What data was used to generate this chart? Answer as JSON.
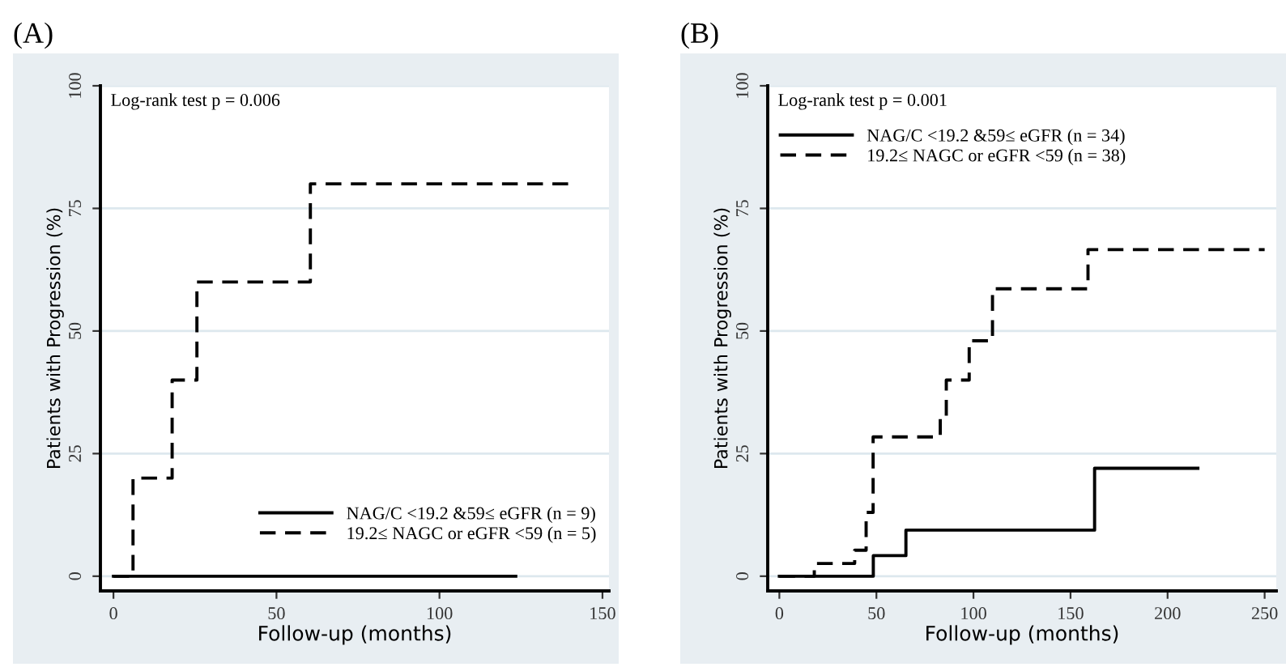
{
  "chart_data": [
    {
      "type": "step",
      "title": "(A)",
      "xlabel": "Follow-up (months)",
      "ylabel": "Patients with Progression (%)",
      "xlim": [
        -4,
        152
      ],
      "ylim": [
        -3,
        100
      ],
      "xticks": [
        0,
        50,
        100,
        150
      ],
      "yticks": [
        0,
        25,
        50,
        75,
        100
      ],
      "grid": "y",
      "legend": "bottom right",
      "annotations": [
        "Log-rank test p = 0.006"
      ],
      "series": [
        {
          "name": "NAG/C <19.2 &59≤ eGFR (n = 9)",
          "color": "#000000",
          "line_style": "solid",
          "x": [
            0,
            123.4
          ],
          "values": [
            0,
            0
          ]
        },
        {
          "name": "19.2≤ NAGC or eGFR <59 (n = 5)",
          "color": "#000000",
          "line_style": "dashed",
          "x": [
            0,
            6,
            18,
            25.6,
            60.4,
            140.4
          ],
          "values": [
            0,
            20,
            40,
            60,
            80,
            80
          ]
        }
      ]
    },
    {
      "type": "step",
      "title": "(B)",
      "xlabel": "Follow-up (months)",
      "ylabel": "Patients with Progression (%)",
      "xlim": [
        -6,
        256
      ],
      "ylim": [
        -3,
        100
      ],
      "xticks": [
        0,
        50,
        100,
        150,
        200,
        250
      ],
      "yticks": [
        0,
        25,
        50,
        75,
        100
      ],
      "grid": "y",
      "legend": "top left",
      "annotations": [
        "Log-rank test p = 0.001"
      ],
      "series": [
        {
          "name": "NAG/C <19.2 &59≤ eGFR (n = 34)",
          "color": "#000000",
          "line_style": "solid",
          "x": [
            0,
            48.4,
            65.2,
            162.4,
            215.6
          ],
          "values": [
            0,
            4.2,
            9.4,
            22,
            22
          ]
        },
        {
          "name": "19.2≤ NAGC or eGFR <59 (n = 38)",
          "color": "#000000",
          "line_style": "dashed",
          "x": [
            0,
            18,
            38.8,
            44.7,
            48.3,
            82.9,
            86,
            97.8,
            109.8,
            159,
            250
          ],
          "values": [
            0,
            2.6,
            5.3,
            13,
            28.4,
            32.5,
            40,
            48,
            58.6,
            66.6,
            66.6
          ]
        }
      ]
    }
  ]
}
